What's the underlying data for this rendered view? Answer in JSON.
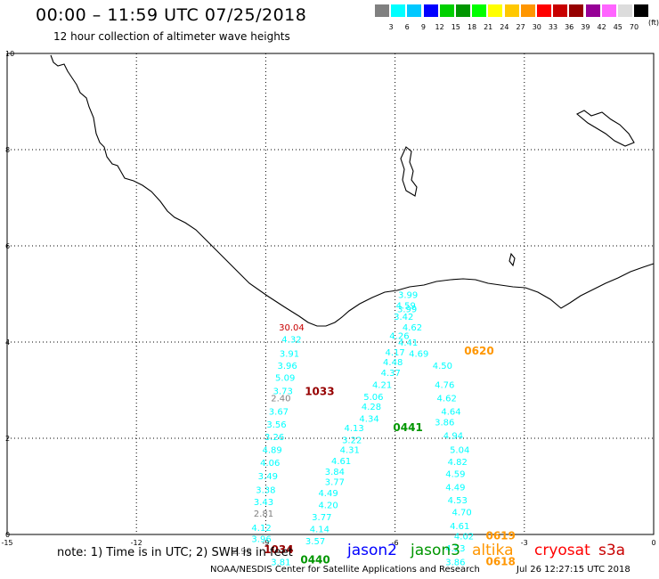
{
  "header": {
    "title": "00:00 – 11:59 UTC 07/25/2018",
    "subtitle": "12 hour collection of altimeter wave heights"
  },
  "legend": {
    "unit": "(ft)",
    "colors": [
      "#808080",
      "#00ffff",
      "#00c8ff",
      "#0000ff",
      "#00d000",
      "#009600",
      "#00ff00",
      "#ffff00",
      "#ffc800",
      "#ff9600",
      "#ff0000",
      "#c80000",
      "#960000",
      "#960096",
      "#ff64ff",
      "#dcdcdc",
      "#000000"
    ],
    "labels": [
      "3",
      "6",
      "9",
      "12",
      "15",
      "18",
      "21",
      "24",
      "27",
      "30",
      "33",
      "36",
      "39",
      "42",
      "45",
      "70"
    ]
  },
  "axes": {
    "x_ticks": [
      "-15",
      "-12",
      "-9",
      "-6",
      "-3",
      "0"
    ],
    "y_ticks": [
      "0",
      "2",
      "4",
      "6",
      "8",
      "10"
    ]
  },
  "observations": [
    {
      "text": "30.04",
      "lon": -8.4,
      "lat": 4.3,
      "color": "#c80000"
    },
    {
      "text": "4.32",
      "lon": -8.4,
      "lat": 4.05,
      "color": "#00ffff"
    },
    {
      "text": "3.91",
      "lon": -8.45,
      "lat": 3.75,
      "color": "#00ffff"
    },
    {
      "text": "3.96",
      "lon": -8.5,
      "lat": 3.5,
      "color": "#00ffff"
    },
    {
      "text": "5.09",
      "lon": -8.55,
      "lat": 3.25,
      "color": "#00ffff"
    },
    {
      "text": "3.73",
      "lon": -8.6,
      "lat": 2.97,
      "color": "#00ffff"
    },
    {
      "text": "2.40",
      "lon": -8.65,
      "lat": 2.82,
      "color": "#808080"
    },
    {
      "text": "1033",
      "lon": -7.75,
      "lat": 2.95,
      "color": "#960000"
    },
    {
      "text": "3.67",
      "lon": -8.7,
      "lat": 2.55,
      "color": "#00ffff"
    },
    {
      "text": "3.56",
      "lon": -8.75,
      "lat": 2.28,
      "color": "#00ffff"
    },
    {
      "text": "3.26",
      "lon": -8.8,
      "lat": 2.02,
      "color": "#00ffff"
    },
    {
      "text": "4.89",
      "lon": -8.85,
      "lat": 1.75,
      "color": "#00ffff"
    },
    {
      "text": "4.06",
      "lon": -8.9,
      "lat": 1.48,
      "color": "#00ffff"
    },
    {
      "text": "3.49",
      "lon": -8.95,
      "lat": 1.2,
      "color": "#00ffff"
    },
    {
      "text": "3.38",
      "lon": -9.0,
      "lat": 0.92,
      "color": "#00ffff"
    },
    {
      "text": "3.43",
      "lon": -9.05,
      "lat": 0.67,
      "color": "#00ffff"
    },
    {
      "text": "2.81",
      "lon": -9.05,
      "lat": 0.43,
      "color": "#808080"
    },
    {
      "text": "4.12",
      "lon": -9.1,
      "lat": 0.13,
      "color": "#00ffff"
    },
    {
      "text": "3.96",
      "lon": -9.1,
      "lat": -0.1,
      "color": "#00ffff"
    },
    {
      "text": "2.99",
      "lon": -9.55,
      "lat": -0.35,
      "color": "#808080"
    },
    {
      "text": "1034",
      "lon": -8.7,
      "lat": -0.33,
      "color": "#960000"
    },
    {
      "text": "3.81",
      "lon": -8.65,
      "lat": -0.58,
      "color": "#00ffff"
    },
    {
      "text": "0440",
      "lon": -7.85,
      "lat": -0.55,
      "color": "#009600"
    },
    {
      "text": "3.99",
      "lon": -5.7,
      "lat": 4.97,
      "color": "#00ffff"
    },
    {
      "text": "4.59",
      "lon": -5.75,
      "lat": 4.75,
      "color": "#00ffff"
    },
    {
      "text": "3.99",
      "lon": -5.72,
      "lat": 4.68,
      "color": "#00ffff"
    },
    {
      "text": "3.42",
      "lon": -5.8,
      "lat": 4.52,
      "color": "#00ffff"
    },
    {
      "text": "4.62",
      "lon": -5.6,
      "lat": 4.3,
      "color": "#00ffff"
    },
    {
      "text": "4.26",
      "lon": -5.9,
      "lat": 4.12,
      "color": "#00ffff"
    },
    {
      "text": "4.41",
      "lon": -5.7,
      "lat": 3.98,
      "color": "#00ffff"
    },
    {
      "text": "4.17",
      "lon": -6.0,
      "lat": 3.78,
      "color": "#00ffff"
    },
    {
      "text": "4.69",
      "lon": -5.45,
      "lat": 3.75,
      "color": "#00ffff"
    },
    {
      "text": "4.48",
      "lon": -6.05,
      "lat": 3.57,
      "color": "#00ffff"
    },
    {
      "text": "0620",
      "lon": -4.05,
      "lat": 3.8,
      "color": "#ff9600"
    },
    {
      "text": "4.50",
      "lon": -4.9,
      "lat": 3.5,
      "color": "#00ffff"
    },
    {
      "text": "4.37",
      "lon": -6.1,
      "lat": 3.35,
      "color": "#00ffff"
    },
    {
      "text": "4.21",
      "lon": -6.3,
      "lat": 3.1,
      "color": "#00ffff"
    },
    {
      "text": "4.76",
      "lon": -4.85,
      "lat": 3.1,
      "color": "#00ffff"
    },
    {
      "text": "5.06",
      "lon": -6.5,
      "lat": 2.85,
      "color": "#00ffff"
    },
    {
      "text": "4.62",
      "lon": -4.8,
      "lat": 2.82,
      "color": "#00ffff"
    },
    {
      "text": "4.28",
      "lon": -6.55,
      "lat": 2.65,
      "color": "#00ffff"
    },
    {
      "text": "4.64",
      "lon": -4.7,
      "lat": 2.55,
      "color": "#00ffff"
    },
    {
      "text": "4.34",
      "lon": -6.6,
      "lat": 2.4,
      "color": "#00ffff"
    },
    {
      "text": "3.86",
      "lon": -4.85,
      "lat": 2.32,
      "color": "#00ffff"
    },
    {
      "text": "0441",
      "lon": -5.7,
      "lat": 2.2,
      "color": "#009600"
    },
    {
      "text": "4.13",
      "lon": -6.95,
      "lat": 2.2,
      "color": "#00ffff"
    },
    {
      "text": "4.94",
      "lon": -4.65,
      "lat": 2.05,
      "color": "#00ffff"
    },
    {
      "text": "3.22",
      "lon": -7.0,
      "lat": 1.95,
      "color": "#00ffff"
    },
    {
      "text": "4.31",
      "lon": -7.05,
      "lat": 1.75,
      "color": "#00ffff"
    },
    {
      "text": "5.04",
      "lon": -4.5,
      "lat": 1.75,
      "color": "#00ffff"
    },
    {
      "text": "4.61",
      "lon": -7.25,
      "lat": 1.52,
      "color": "#00ffff"
    },
    {
      "text": "4.82",
      "lon": -4.55,
      "lat": 1.5,
      "color": "#00ffff"
    },
    {
      "text": "3.84",
      "lon": -7.4,
      "lat": 1.3,
      "color": "#00ffff"
    },
    {
      "text": "4.59",
      "lon": -4.6,
      "lat": 1.25,
      "color": "#00ffff"
    },
    {
      "text": "3.77",
      "lon": -7.4,
      "lat": 1.08,
      "color": "#00ffff"
    },
    {
      "text": "4.49",
      "lon": -4.6,
      "lat": 0.97,
      "color": "#00ffff"
    },
    {
      "text": "4.49",
      "lon": -7.55,
      "lat": 0.85,
      "color": "#00ffff"
    },
    {
      "text": "4.53",
      "lon": -4.55,
      "lat": 0.7,
      "color": "#00ffff"
    },
    {
      "text": "4.20",
      "lon": -7.55,
      "lat": 0.6,
      "color": "#00ffff"
    },
    {
      "text": "4.70",
      "lon": -4.45,
      "lat": 0.45,
      "color": "#00ffff"
    },
    {
      "text": "3.77",
      "lon": -7.7,
      "lat": 0.35,
      "color": "#00ffff"
    },
    {
      "text": "4.61",
      "lon": -4.5,
      "lat": 0.17,
      "color": "#00ffff"
    },
    {
      "text": "4.14",
      "lon": -7.75,
      "lat": 0.1,
      "color": "#00ffff"
    },
    {
      "text": "4.02",
      "lon": -4.4,
      "lat": -0.05,
      "color": "#00ffff"
    },
    {
      "text": "0619",
      "lon": -3.55,
      "lat": -0.05,
      "color": "#ff9600"
    },
    {
      "text": "3.57",
      "lon": -7.85,
      "lat": -0.15,
      "color": "#00ffff"
    },
    {
      "text": "4.23",
      "lon": -4.6,
      "lat": -0.3,
      "color": "#00ffff"
    },
    {
      "text": "3.86",
      "lon": -4.6,
      "lat": -0.58,
      "color": "#00ffff"
    },
    {
      "text": "0618",
      "lon": -3.55,
      "lat": -0.58,
      "color": "#ff9600"
    }
  ],
  "footer": {
    "note": "note: 1) Time is in UTC; 2) SWH is in feet",
    "satellites": [
      {
        "name": "jason2",
        "color": "#0000ff"
      },
      {
        "name": "jason3",
        "color": "#009600"
      },
      {
        "name": "altika",
        "color": "#ff9600"
      },
      {
        "name": "cryosat",
        "color": "#ff0000"
      },
      {
        "name": "s3a",
        "color": "#c80000"
      }
    ],
    "credit": "NOAA/NESDIS Center for Satellite Applications and Research",
    "generated": "Jul 26 12:27:15 UTC 2018"
  }
}
